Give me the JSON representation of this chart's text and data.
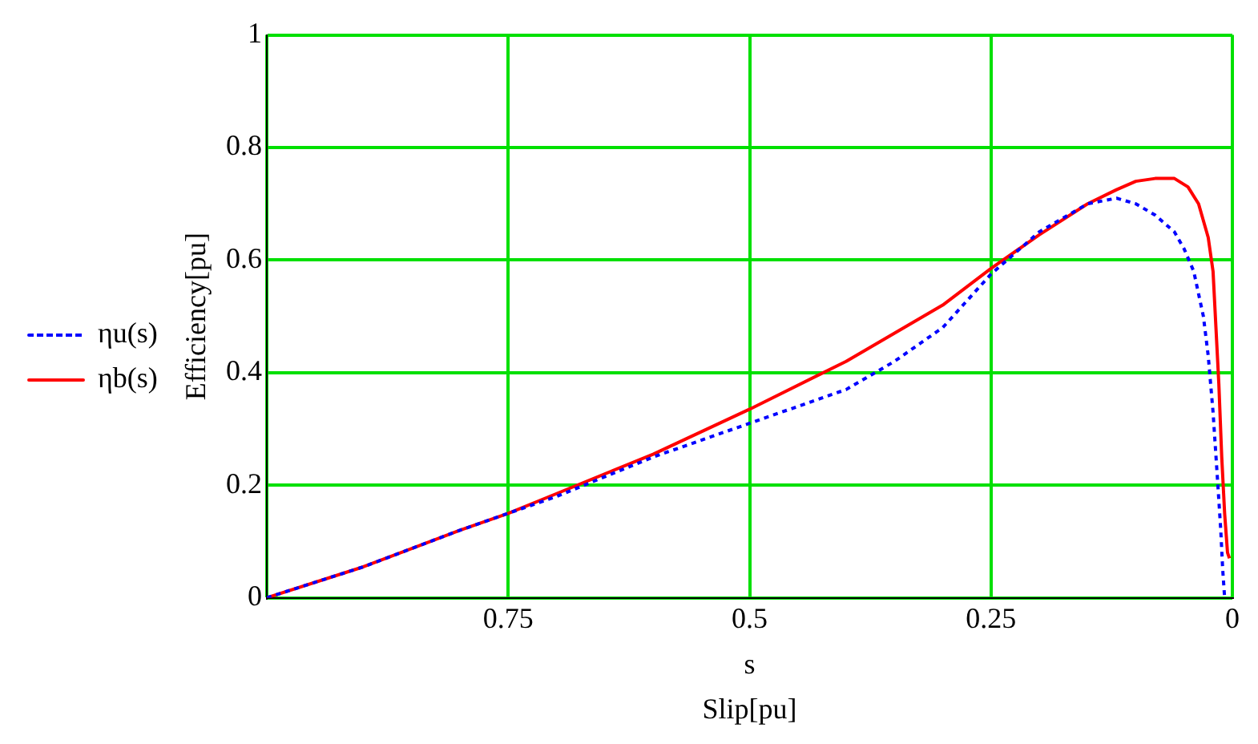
{
  "chart_data": {
    "type": "line",
    "xlabel": "s",
    "ylabel": "Efficiency[pu]",
    "annotations": [
      "Slip[pu]"
    ],
    "xlim": [
      1,
      0
    ],
    "ylim": [
      0,
      1
    ],
    "xticks": [
      {
        "value": 1,
        "label": null
      },
      0.75,
      0.5,
      0.25,
      0
    ],
    "yticks": [
      0,
      0.2,
      0.4,
      0.6,
      0.8,
      1
    ],
    "grid": true,
    "legend": "left",
    "marker": "none",
    "series": [
      {
        "name": "ηb(s)",
        "color": "#ff0000",
        "line_style": "solid",
        "x": [
          1,
          0.9,
          0.8,
          0.75,
          0.7,
          0.6,
          0.5,
          0.4,
          0.3,
          0.25,
          0.2,
          0.15,
          0.12,
          0.1,
          0.08,
          0.06,
          0.046,
          0.035,
          0.025,
          0.02,
          0.017,
          0.014,
          0.011,
          0.008,
          0.005,
          0.003
        ],
        "values": [
          0,
          0.055,
          0.12,
          0.15,
          0.185,
          0.255,
          0.335,
          0.42,
          0.52,
          0.585,
          0.645,
          0.7,
          0.725,
          0.74,
          0.745,
          0.745,
          0.73,
          0.7,
          0.64,
          0.58,
          0.48,
          0.38,
          0.25,
          0.15,
          0.08,
          0.07
        ]
      },
      {
        "name": "ηu(s)",
        "color": "#0000ff",
        "line_style": "dotted",
        "x": [
          1,
          0.9,
          0.8,
          0.75,
          0.7,
          0.6,
          0.5,
          0.45,
          0.4,
          0.35,
          0.3,
          0.25,
          0.2,
          0.15,
          0.12,
          0.1,
          0.08,
          0.06,
          0.05,
          0.04,
          0.03,
          0.025,
          0.02,
          0.015,
          0.012,
          0.01,
          0.008
        ],
        "values": [
          0,
          0.055,
          0.12,
          0.15,
          0.18,
          0.25,
          0.31,
          0.34,
          0.37,
          0.42,
          0.48,
          0.575,
          0.65,
          0.7,
          0.71,
          0.7,
          0.68,
          0.65,
          0.62,
          0.58,
          0.5,
          0.43,
          0.33,
          0.2,
          0.12,
          0.05,
          0
        ]
      }
    ]
  }
}
